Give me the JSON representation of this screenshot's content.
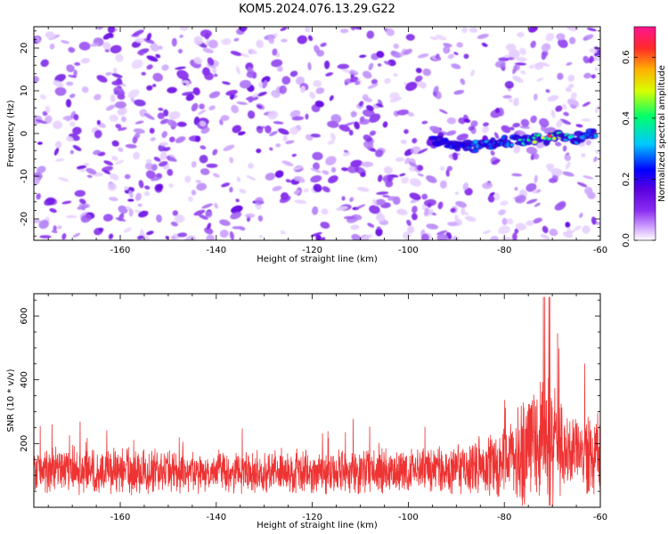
{
  "title": "KOM5.2024.076.13.29.G22",
  "chart_data": [
    {
      "type": "heatmap",
      "xlabel": "Height of straight line (km)",
      "ylabel": "Frequency (Hz)",
      "xlim": [
        -178,
        -60
      ],
      "ylim": [
        -25,
        25
      ],
      "xticks": [
        -160,
        -140,
        -120,
        -100,
        -80,
        -60
      ],
      "yticks": [
        -20,
        -10,
        0,
        10,
        20
      ],
      "colorbar": {
        "label": "Normalized spectral amplitude",
        "range": [
          0,
          0.7
        ],
        "ticks": [
          0.0,
          0.2,
          0.4,
          0.6
        ],
        "colors": [
          "#ffffff",
          "#d9b3ff",
          "#8b2cf0",
          "#5a00e0",
          "#0000ff",
          "#00c8ff",
          "#00ff6a",
          "#d8ff00",
          "#ffb000",
          "#ff2a2a",
          "#ff1493"
        ]
      },
      "signal_track": {
        "description_hidden": true,
        "x": [
          -95,
          -90,
          -85,
          -80,
          -75,
          -70,
          -65,
          -61
        ],
        "y": [
          -2,
          -3,
          -3,
          -2,
          -1.5,
          -1,
          -1,
          0
        ],
        "peak_amplitude": [
          0.15,
          0.2,
          0.25,
          0.3,
          0.45,
          0.6,
          0.4,
          0.3
        ]
      },
      "grid": false
    },
    {
      "type": "line",
      "xlabel": "Height of straight line (km)",
      "ylabel": "SNR (10 * v/v)",
      "xlim": [
        -178,
        -60
      ],
      "ylim": [
        0,
        670
      ],
      "xticks": [
        -160,
        -140,
        -120,
        -100,
        -80,
        -60
      ],
      "yticks": [
        200,
        400,
        600
      ],
      "series_color": "#ee3333",
      "envelope": {
        "x": [
          -178,
          -170,
          -160,
          -150,
          -140,
          -130,
          -120,
          -110,
          -100,
          -90,
          -85,
          -80,
          -76,
          -74,
          -72,
          -70,
          -68,
          -66,
          -64,
          -62,
          -60
        ],
        "baseline": [
          115,
          115,
          115,
          112,
          112,
          110,
          110,
          112,
          115,
          120,
          125,
          130,
          180,
          210,
          230,
          200,
          180,
          170,
          165,
          160,
          160
        ],
        "amplitude": [
          70,
          75,
          75,
          70,
          70,
          68,
          70,
          72,
          75,
          85,
          95,
          110,
          180,
          200,
          230,
          210,
          160,
          150,
          140,
          140,
          140
        ],
        "noise_seed": 42
      },
      "grid": false
    }
  ]
}
